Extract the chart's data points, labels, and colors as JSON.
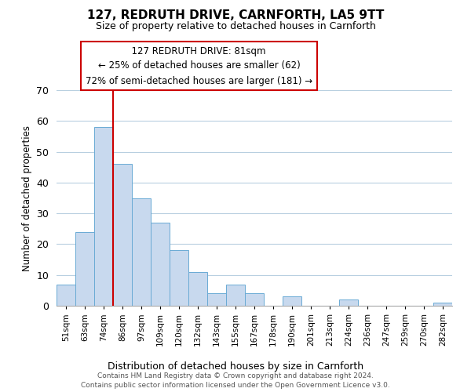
{
  "title": "127, REDRUTH DRIVE, CARNFORTH, LA5 9TT",
  "subtitle": "Size of property relative to detached houses in Carnforth",
  "xlabel": "Distribution of detached houses by size in Carnforth",
  "ylabel": "Number of detached properties",
  "bar_labels": [
    "51sqm",
    "63sqm",
    "74sqm",
    "86sqm",
    "97sqm",
    "109sqm",
    "120sqm",
    "132sqm",
    "143sqm",
    "155sqm",
    "167sqm",
    "178sqm",
    "190sqm",
    "201sqm",
    "213sqm",
    "224sqm",
    "236sqm",
    "247sqm",
    "259sqm",
    "270sqm",
    "282sqm"
  ],
  "bar_values": [
    7,
    24,
    58,
    46,
    35,
    27,
    18,
    11,
    4,
    7,
    4,
    0,
    3,
    0,
    0,
    2,
    0,
    0,
    0,
    0,
    1
  ],
  "bar_color": "#c8d9ee",
  "bar_edge_color": "#6aaad4",
  "vline_color": "#cc0000",
  "vline_pos": 2.5,
  "ylim": [
    0,
    70
  ],
  "yticks": [
    0,
    10,
    20,
    30,
    40,
    50,
    60,
    70
  ],
  "annotation_title": "127 REDRUTH DRIVE: 81sqm",
  "annotation_line1": "← 25% of detached houses are smaller (62)",
  "annotation_line2": "72% of semi-detached houses are larger (181) →",
  "box_edge_color": "#cc0000",
  "footer_line1": "Contains HM Land Registry data © Crown copyright and database right 2024.",
  "footer_line2": "Contains public sector information licensed under the Open Government Licence v3.0.",
  "background_color": "#ffffff",
  "grid_color": "#b8cfe0"
}
